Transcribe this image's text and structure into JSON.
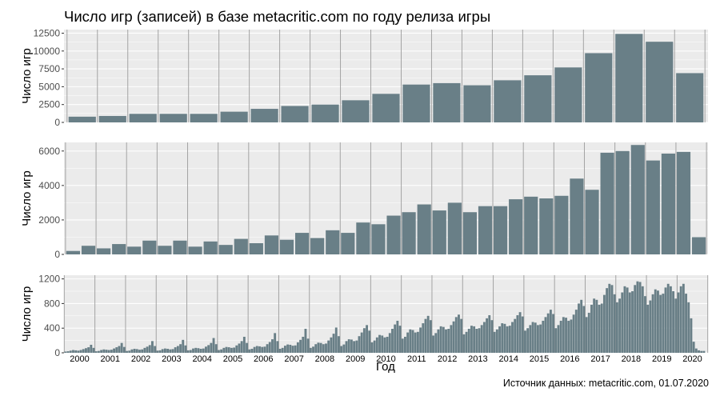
{
  "title": "Число игр (записей) в базе metacritic.com по году релиза игры",
  "caption": "Источник данных: metacritic.com, 01.07.2020",
  "colors": {
    "bar": "#697f87",
    "panel_bg": "#ebebeb",
    "grid": "#ffffff",
    "year_sep": "#a3a3a3",
    "text": "#4d4d4d"
  },
  "chart_data": [
    {
      "type": "bar",
      "granularity": "year",
      "ylabel": "Число игр",
      "xlabel": "Год",
      "ylim": [
        0,
        13000
      ],
      "yticks": [
        0,
        2500,
        5000,
        7500,
        10000,
        12500
      ],
      "years": [
        "2000",
        "2001",
        "2002",
        "2003",
        "2004",
        "2005",
        "2006",
        "2007",
        "2008",
        "2009",
        "2010",
        "2011",
        "2012",
        "2013",
        "2014",
        "2015",
        "2016",
        "2017",
        "2018",
        "2019",
        "2020"
      ],
      "values": [
        800,
        900,
        1200,
        1200,
        1200,
        1500,
        1900,
        2300,
        2500,
        3100,
        4000,
        5300,
        5500,
        5200,
        5900,
        6600,
        7700,
        9700,
        12400,
        11300,
        6900
      ]
    },
    {
      "type": "bar",
      "granularity": "half-year",
      "ylabel": "Число игр",
      "xlabel": "Год",
      "ylim": [
        0,
        6500
      ],
      "yticks": [
        0,
        2000,
        4000,
        6000
      ],
      "years": [
        "2000",
        "2001",
        "2002",
        "2003",
        "2004",
        "2005",
        "2006",
        "2007",
        "2008",
        "2009",
        "2010",
        "2011",
        "2012",
        "2013",
        "2014",
        "2015",
        "2016",
        "2017",
        "2018",
        "2019",
        "2020"
      ],
      "values": [
        200,
        500,
        350,
        600,
        450,
        800,
        500,
        800,
        450,
        750,
        550,
        900,
        650,
        1100,
        850,
        1250,
        950,
        1400,
        1250,
        1850,
        1750,
        2250,
        2450,
        2900,
        2550,
        3000,
        2450,
        2800,
        2800,
        3200,
        3350,
        3250,
        3400,
        4400,
        3750,
        5900,
        6000,
        6350,
        5450,
        5850,
        5950,
        1000
      ]
    },
    {
      "type": "bar",
      "granularity": "month",
      "ylabel": "Число игр",
      "xlabel": "Год",
      "ylim": [
        0,
        1260
      ],
      "yticks": [
        0,
        400,
        800,
        1200
      ],
      "years": [
        "2000",
        "2001",
        "2002",
        "2003",
        "2004",
        "2005",
        "2006",
        "2007",
        "2008",
        "2009",
        "2010",
        "2011",
        "2012",
        "2013",
        "2014",
        "2015",
        "2016",
        "2017",
        "2018",
        "2019",
        "2020"
      ],
      "values": [
        20,
        25,
        35,
        45,
        40,
        35,
        45,
        60,
        75,
        90,
        130,
        80,
        25,
        30,
        45,
        55,
        50,
        45,
        50,
        70,
        90,
        110,
        160,
        95,
        30,
        35,
        55,
        65,
        60,
        50,
        55,
        80,
        100,
        125,
        190,
        110,
        35,
        40,
        60,
        70,
        65,
        55,
        60,
        90,
        110,
        140,
        210,
        120,
        40,
        45,
        70,
        80,
        75,
        65,
        70,
        100,
        125,
        160,
        240,
        140,
        45,
        55,
        80,
        95,
        90,
        80,
        85,
        120,
        150,
        190,
        260,
        160,
        55,
        65,
        95,
        110,
        105,
        95,
        100,
        140,
        175,
        220,
        320,
        190,
        65,
        80,
        115,
        135,
        130,
        115,
        120,
        170,
        210,
        260,
        390,
        230,
        80,
        100,
        140,
        165,
        160,
        140,
        150,
        200,
        250,
        310,
        410,
        270,
        110,
        135,
        190,
        220,
        215,
        190,
        200,
        270,
        330,
        400,
        450,
        360,
        170,
        200,
        250,
        290,
        280,
        250,
        260,
        320,
        390,
        460,
        520,
        440,
        230,
        260,
        330,
        380,
        370,
        330,
        340,
        410,
        480,
        550,
        600,
        530,
        280,
        320,
        380,
        430,
        420,
        380,
        390,
        450,
        510,
        580,
        620,
        550,
        300,
        340,
        390,
        440,
        430,
        390,
        400,
        450,
        500,
        560,
        610,
        530,
        340,
        380,
        430,
        480,
        470,
        430,
        440,
        500,
        550,
        610,
        660,
        590,
        360,
        400,
        450,
        500,
        490,
        450,
        460,
        520,
        580,
        640,
        700,
        630,
        400,
        450,
        520,
        580,
        570,
        520,
        540,
        620,
        700,
        800,
        860,
        760,
        580,
        650,
        780,
        880,
        860,
        780,
        800,
        940,
        1050,
        1120,
        1100,
        950,
        820,
        880,
        980,
        1080,
        1060,
        980,
        1000,
        1100,
        1160,
        1150,
        1080,
        920,
        780,
        850,
        950,
        1030,
        1010,
        940,
        960,
        1060,
        1120,
        1080,
        1000,
        880,
        980,
        1080,
        1120,
        960,
        820,
        560,
        180,
        70,
        40,
        30,
        30,
        0
      ]
    }
  ]
}
